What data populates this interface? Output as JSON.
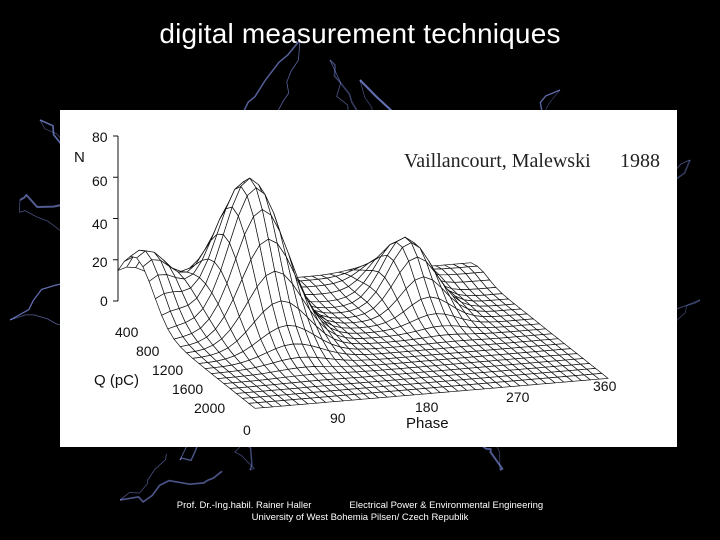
{
  "slide": {
    "title": "digital measurement techniques",
    "footer_author": "Prof. Dr.-Ing.habil. Rainer Haller",
    "footer_department": "Electrical Power & Environmental Engineering",
    "footer_university": "University of West Bohemia Pilsen/ Czech Republik"
  },
  "colors": {
    "background": "#000000",
    "lightning": "#8fa0ff",
    "figure_bg": "#ffffff",
    "text": "#ffffff"
  },
  "chart_data": {
    "type": "surface",
    "annotation": "Vaillancourt, Malewski",
    "year": "1988",
    "axes": {
      "n": {
        "label": "N",
        "ticks": [
          "80",
          "60",
          "40",
          "20",
          "0"
        ],
        "range": [
          0,
          80
        ]
      },
      "q": {
        "label": "Q (pC)",
        "ticks": [
          "0",
          "400",
          "800",
          "1200",
          "1600",
          "2000"
        ],
        "range": [
          0,
          2000
        ]
      },
      "phase": {
        "label": "Phase",
        "ticks": [
          "90",
          "180",
          "270",
          "360"
        ],
        "range": [
          0,
          360
        ]
      }
    },
    "peaks": [
      {
        "phase": 10,
        "q": 1700,
        "n": 28
      },
      {
        "phase": 90,
        "q": 1350,
        "n": 72
      },
      {
        "phase": 260,
        "q": 1500,
        "n": 32
      }
    ]
  }
}
